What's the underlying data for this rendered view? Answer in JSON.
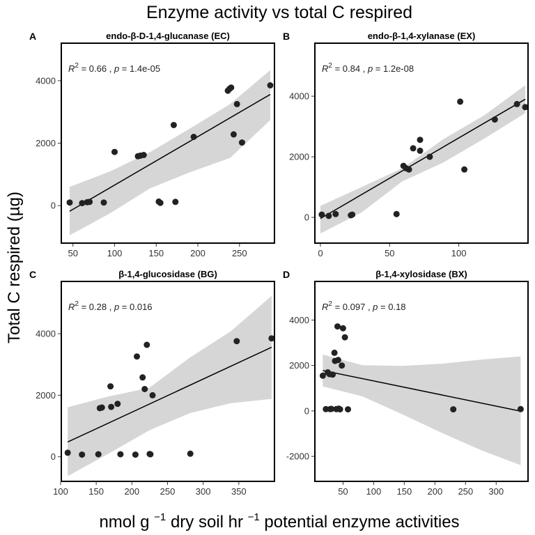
{
  "figure": {
    "title": "Enzyme activity vs total C respired",
    "ylabel": "Total C respired (µg)",
    "xlabel_parts": [
      "nmol g",
      "−1",
      "dry soil hr ",
      "−1",
      "potential enzyme activities"
    ]
  },
  "chart_data": [
    {
      "type": "scatter",
      "letter": "A",
      "title": "endo-β-D-1,4-glucanase (EC)",
      "annotation": {
        "r2": "0.66",
        "p": "1.4e-05"
      },
      "xlim": [
        36,
        292
      ],
      "ylim": [
        -1200,
        5200
      ],
      "xticks": [
        50,
        100,
        150,
        200,
        250
      ],
      "yticks": [
        0,
        2000,
        4000
      ],
      "x": [
        46,
        61,
        67,
        70,
        87,
        100,
        128,
        131,
        135,
        153,
        155,
        171,
        173,
        195,
        236,
        238,
        240,
        243,
        247,
        253,
        287
      ],
      "y": [
        100,
        80,
        110,
        120,
        100,
        1720,
        1580,
        1600,
        1620,
        130,
        90,
        2580,
        120,
        2200,
        3680,
        3740,
        3780,
        2280,
        3250,
        2020,
        3850
      ],
      "fit": {
        "x": [
          46,
          287
        ],
        "y": [
          -180,
          3560
        ]
      },
      "ci_upper": [
        600,
        1090,
        1710,
        2470,
        3250,
        4340
      ],
      "ci_lower": [
        -950,
        -250,
        550,
        1070,
        1530,
        2740
      ]
    },
    {
      "type": "scatter",
      "letter": "B",
      "title": "endo-β-1,4-xylanase (EX)",
      "annotation": {
        "r2": "0.84",
        "p": "1.2e-08"
      },
      "xlim": [
        -4,
        150
      ],
      "ylim": [
        -850,
        5750
      ],
      "xticks": [
        0,
        50,
        100
      ],
      "yticks": [
        0,
        2000,
        4000
      ],
      "x": [
        1,
        6,
        11,
        22,
        23,
        55,
        60,
        62,
        64,
        67,
        72,
        72,
        79,
        101,
        104,
        126,
        142,
        148
      ],
      "y": [
        90,
        50,
        110,
        70,
        90,
        110,
        1700,
        1620,
        1580,
        2280,
        2560,
        2200,
        2000,
        3820,
        1580,
        3230,
        3740,
        3640
      ],
      "fit": {
        "x": [
          0,
          148
        ],
        "y": [
          -40,
          3900
        ]
      },
      "ci_upper": [
        380,
        1000,
        1620,
        2580,
        3370,
        4360
      ],
      "ci_lower": [
        -530,
        160,
        1190,
        1810,
        2600,
        3440
      ]
    },
    {
      "type": "scatter",
      "letter": "C",
      "title": "β-1,4-glucosidase (BG)",
      "annotation": {
        "r2": "0.28",
        "p": "0.016"
      },
      "xlim": [
        101,
        400
      ],
      "ylim": [
        -800,
        5700
      ],
      "xticks": [
        100,
        150,
        200,
        250,
        300,
        350
      ],
      "yticks": [
        0,
        2000,
        4000
      ],
      "x": [
        110,
        130,
        153,
        155,
        158,
        170,
        171,
        180,
        184,
        205,
        207,
        215,
        218,
        221,
        225,
        226,
        229,
        282,
        347,
        396
      ],
      "y": [
        130,
        70,
        80,
        1580,
        1600,
        2290,
        1620,
        1720,
        80,
        70,
        3260,
        2580,
        2200,
        3640,
        90,
        80,
        2000,
        100,
        3760,
        3850
      ],
      "fit": {
        "x": [
          110,
          396
        ],
        "y": [
          480,
          3560
        ]
      },
      "ci_upper": [
        1610,
        1960,
        2240,
        3230,
        4080,
        5230
      ],
      "ci_lower": [
        -630,
        100,
        860,
        1420,
        1740,
        1880
      ]
    },
    {
      "type": "scatter",
      "letter": "D",
      "title": "β-1,4-xylosidase (BX)",
      "annotation": {
        "r2": "0.097",
        "p": "0.18"
      },
      "xlim": [
        4,
        352
      ],
      "ylim": [
        -3100,
        5700
      ],
      "xticks": [
        50,
        100,
        150,
        200,
        250,
        300
      ],
      "yticks": [
        -2000,
        0,
        2000,
        4000
      ],
      "x": [
        17,
        22,
        25,
        28,
        29,
        31,
        33,
        36,
        37,
        39,
        41,
        42,
        43,
        45,
        48,
        50,
        53,
        58,
        230,
        340
      ],
      "y": [
        1550,
        80,
        1700,
        1620,
        80,
        90,
        1600,
        2560,
        2200,
        80,
        3720,
        2240,
        100,
        70,
        2000,
        3640,
        3240,
        70,
        70,
        80
      ],
      "fit": {
        "x": [
          17,
          340
        ],
        "y": [
          1780,
          -10
        ]
      },
      "ci_upper": [
        2480,
        2010,
        1980,
        2080,
        2260,
        2400
      ],
      "ci_lower": [
        1080,
        640,
        -140,
        -960,
        -1730,
        -2390
      ]
    }
  ]
}
